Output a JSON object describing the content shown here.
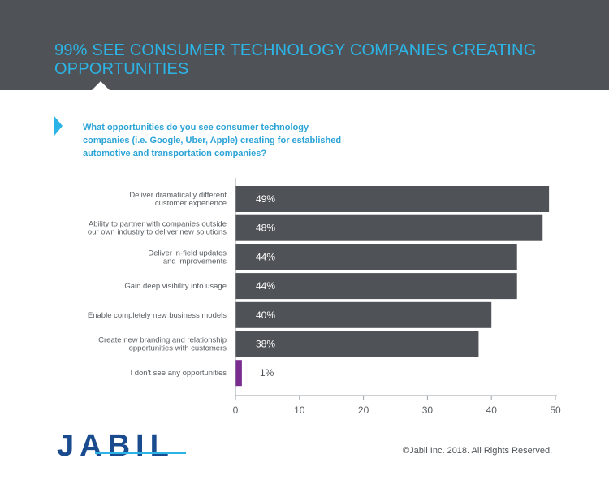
{
  "header": {
    "title": "99% SEE CONSUMER TECHNOLOGY COMPANIES CREATING OPPORTUNITIES"
  },
  "question": "What opportunities do you see consumer technology companies (i.e. Google, Uber, Apple) creating for established automotive and transportation companies?",
  "footer": {
    "logo_text": "JABIL",
    "copyright": "©Jabil Inc. 2018. All Rights Reserved."
  },
  "colors": {
    "banner": "#4f5357",
    "accent": "#2db4e6",
    "bar": "#4f5357",
    "highlight_bar": "#7b2d8f",
    "logo": "#1a4b8f"
  },
  "chart_data": {
    "type": "bar",
    "orientation": "horizontal",
    "categories": [
      [
        "Deliver dramatically different",
        "customer experience"
      ],
      [
        "Ability to partner with companies outside",
        "our own industry to deliver new solutions"
      ],
      [
        "Deliver in-field updates",
        "and improvements"
      ],
      [
        "Gain deep visibility into usage"
      ],
      [
        "Enable completely new business models"
      ],
      [
        "Create new branding and relationship",
        "opportunities with customers"
      ],
      [
        "I don't see any opportunities"
      ]
    ],
    "values": [
      49,
      48,
      44,
      44,
      40,
      38,
      1
    ],
    "value_labels": [
      "49%",
      "48%",
      "44%",
      "44%",
      "40%",
      "38%",
      "1%"
    ],
    "highlight_index": 6,
    "xlim": [
      0,
      50
    ],
    "xticks": [
      "0",
      "10",
      "20",
      "30",
      "40",
      "50"
    ],
    "grid": false
  }
}
